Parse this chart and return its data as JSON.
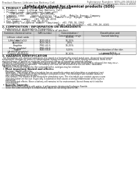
{
  "header_left": "Product Name: Lithium Ion Battery Cell",
  "header_right_line1": "Substance Number: SDS-LIB-000010",
  "header_right_line2": "Established / Revision: Dec.1.2019",
  "title": "Safety data sheet for chemical products (SDS)",
  "section1_title": "1. PRODUCT AND COMPANY IDENTIFICATION",
  "section1_lines": [
    " • Product name: Lithium Ion Battery Cell",
    " • Product code: Cylindrical-type cell",
    "     (INR18650, INR18650, INR18650A,",
    " • Company name:    Sanyo Electric Co., Ltd.  Mobile Energy Company",
    " • Address:        2001  Kaminoike, Sumoto-City, Hyogo, Japan",
    " • Telephone number:  +81-799-26-4111",
    " • Fax number:  +81-799-26-4123",
    " • Emergency telephone number (daytime): +81-799-26-2662",
    "                                     (Night and holiday): +81-799-26-4101"
  ],
  "section2_title": "2. COMPOSITION / INFORMATION ON INGREDIENTS",
  "section2_sub1": " • Substance or preparation: Preparation",
  "section2_sub2": "   • Information about the chemical nature of product:",
  "table_col_headers": [
    "Common chemical name",
    "CAS number",
    "Concentration /\nConcentration range",
    "Classification and\nhazard labeling"
  ],
  "table_rows": [
    [
      "Lithium cobalt oxide\n(LiMnCo)(LiCoO2)",
      "",
      "30-60%",
      ""
    ],
    [
      "Iron",
      "7439-89-6",
      "10-25%",
      ""
    ],
    [
      "Aluminum",
      "7429-90-5",
      "2-6%",
      ""
    ],
    [
      "Graphite\n(Flake graphite)\n(Artificial graphite)",
      "7782-42-5\n7782-44-0",
      "10-25%",
      ""
    ],
    [
      "Copper",
      "7440-50-8",
      "5-15%",
      "Sensitization of the skin\ngroup R43.2"
    ],
    [
      "Organic electrolyte",
      "",
      "10-20%",
      "Inflammatory liquid"
    ]
  ],
  "section3_title": "3. HAZARDS IDENTIFICATION",
  "section3_paras": [
    "  For the battery cell, chemical substances are stored in a hermetically sealed metal case, designed to withstand",
    "temperature changes by pressure-compensation during normal use. As a result, during normal use, there is no",
    "physical danger of ignition or explosion and thermal change of hazardous materials leakage.",
    "  However, if exposed to a fire, added mechanical shock, decomposed, when the electrolyte is released, fire may occur,",
    "the gas release cannot be operated. The battery cell case will be breached at fire-extreme, hazardous",
    "materials may be released.",
    "  Moreover, if heated strongly by the surrounding fire, acid gas may be emitted."
  ],
  "bullet1": " • Most important hazard and effects:",
  "human_header": "    Human health effects:",
  "human_lines": [
    "      Inhalation: The release of the electrolyte has an anesthetic action and stimulates a respiratory tract.",
    "      Skin contact: The release of the electrolyte stimulates a skin. The electrolyte skin contact causes a",
    "      sore and stimulation on the skin.",
    "      Eye contact: The release of the electrolyte stimulates eyes. The electrolyte eye contact causes a sore",
    "      and stimulation on the eye. Especially, a substance that causes a strong inflammation of the eyes is",
    "      contained.",
    "      Environmental effects: Since a battery cell remains in the environment, do not throw out it into the",
    "      environment."
  ],
  "bullet2": " • Specific hazards:",
  "specific_lines": [
    "      If the electrolyte contacts with water, it will generate detrimental hydrogen fluoride.",
    "      Since the used electrolyte is inflammatory liquid, do not bring close to fire."
  ],
  "bg_color": "#ffffff",
  "text_color": "#1a1a1a",
  "gray_text": "#555555",
  "table_hdr_bg": "#cccccc",
  "table_row_bg1": "#eeeeee",
  "table_row_bg2": "#ffffff",
  "line_color": "#888888"
}
